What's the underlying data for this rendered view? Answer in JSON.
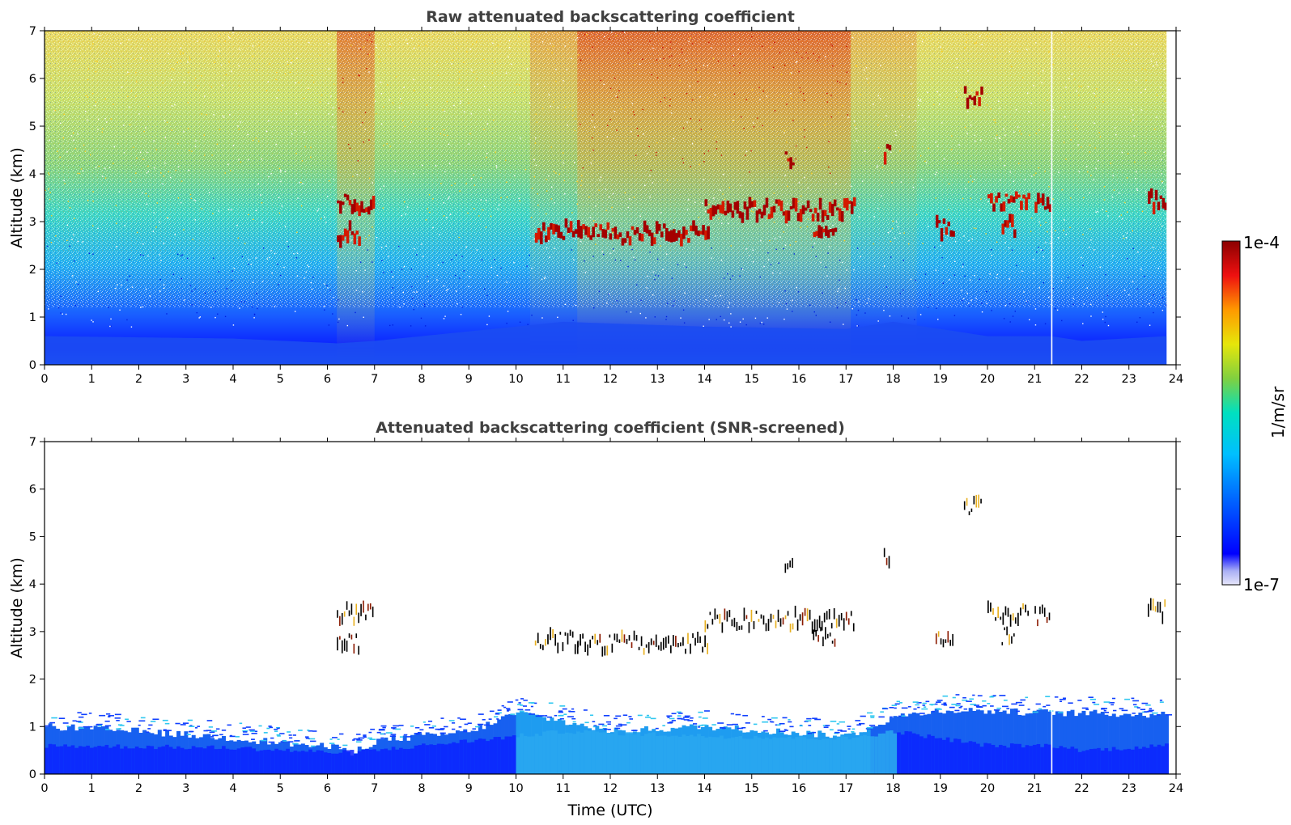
{
  "chart_data": [
    {
      "type": "heatmap",
      "title": "Raw attenuated backscattering coefficient",
      "xlabel": "",
      "ylabel": "Altitude (km)",
      "xlim": [
        0,
        24
      ],
      "ylim": [
        0,
        7
      ],
      "x_ticks": [
        "0",
        "1",
        "2",
        "3",
        "4",
        "5",
        "6",
        "7",
        "8",
        "9",
        "10",
        "11",
        "12",
        "13",
        "14",
        "15",
        "16",
        "17",
        "18",
        "19",
        "20",
        "21",
        "22",
        "23",
        "24"
      ],
      "y_ticks": [
        "0",
        "1",
        "2",
        "3",
        "4",
        "5",
        "6",
        "7"
      ],
      "data_end_hour": 23.8,
      "missing_profile_hour": 21.35,
      "background": "noisy signal increasing with altitude; daytime (11-17 UTC) noise reaches the top of the color scale",
      "boundary_layer_top_km": [
        {
          "x": 0,
          "y": 0.6
        },
        {
          "x": 4,
          "y": 0.55
        },
        {
          "x": 6.2,
          "y": 0.45
        },
        {
          "x": 7,
          "y": 0.5
        },
        {
          "x": 10,
          "y": 0.8
        },
        {
          "x": 11,
          "y": 0.9
        },
        {
          "x": 14,
          "y": 0.8
        },
        {
          "x": 17,
          "y": 0.75
        },
        {
          "x": 18,
          "y": 0.9
        },
        {
          "x": 20,
          "y": 0.6
        },
        {
          "x": 21.35,
          "y": 0.6
        },
        {
          "x": 22,
          "y": 0.5
        },
        {
          "x": 23.8,
          "y": 0.6
        }
      ],
      "cloud_layers": [
        {
          "start": 6.2,
          "end": 7.0,
          "altitude": 3.38
        },
        {
          "start": 6.2,
          "end": 6.7,
          "altitude": 2.75
        },
        {
          "start": 10.4,
          "end": 11.4,
          "altitude": 2.8
        },
        {
          "start": 11.3,
          "end": 14.1,
          "altitude": 2.75
        },
        {
          "start": 14.0,
          "end": 17.2,
          "altitude": 3.25
        },
        {
          "start": 16.3,
          "end": 16.8,
          "altitude": 2.9
        },
        {
          "start": 15.7,
          "end": 15.9,
          "altitude": 4.3
        },
        {
          "start": 17.8,
          "end": 17.95,
          "altitude": 4.5
        },
        {
          "start": 18.9,
          "end": 19.3,
          "altitude": 2.85
        },
        {
          "start": 19.5,
          "end": 19.9,
          "altitude": 5.6
        },
        {
          "start": 20.0,
          "end": 20.9,
          "altitude": 3.4
        },
        {
          "start": 20.3,
          "end": 20.6,
          "altitude": 2.9
        },
        {
          "start": 21.0,
          "end": 21.35,
          "altitude": 3.32
        },
        {
          "start": 23.4,
          "end": 23.8,
          "altitude": 3.45
        }
      ]
    },
    {
      "type": "heatmap",
      "title": "Attenuated backscattering coefficient (SNR-screened)",
      "xlabel": "Time (UTC)",
      "ylabel": "Altitude (km)",
      "xlim": [
        0,
        24
      ],
      "ylim": [
        0,
        7
      ],
      "x_ticks": [
        "0",
        "1",
        "2",
        "3",
        "4",
        "5",
        "6",
        "7",
        "8",
        "9",
        "10",
        "11",
        "12",
        "13",
        "14",
        "15",
        "16",
        "17",
        "18",
        "19",
        "20",
        "21",
        "22",
        "23",
        "24"
      ],
      "y_ticks": [
        "0",
        "1",
        "2",
        "3",
        "4",
        "5",
        "6",
        "7"
      ],
      "screened_signal_top_km": [
        {
          "x": 0,
          "y": 1.0
        },
        {
          "x": 2,
          "y": 0.9
        },
        {
          "x": 4,
          "y": 0.75
        },
        {
          "x": 6.2,
          "y": 0.55
        },
        {
          "x": 6.5,
          "y": 0.45
        },
        {
          "x": 7,
          "y": 0.7
        },
        {
          "x": 9,
          "y": 0.9
        },
        {
          "x": 10,
          "y": 1.3
        },
        {
          "x": 11,
          "y": 1.1
        },
        {
          "x": 12,
          "y": 0.9
        },
        {
          "x": 14,
          "y": 1.0
        },
        {
          "x": 17,
          "y": 0.8
        },
        {
          "x": 18,
          "y": 1.2
        },
        {
          "x": 19,
          "y": 1.35
        },
        {
          "x": 21,
          "y": 1.3
        },
        {
          "x": 23.8,
          "y": 1.25
        }
      ]
    }
  ],
  "colorbar": {
    "label": "1/m/sr",
    "max_label": "1e-4",
    "min_label": "1e-7",
    "scale": "log",
    "range": [
      1e-07,
      0.0001
    ],
    "colormap": [
      "#e6e6fa",
      "#0000ff",
      "#00aaff",
      "#00e5c8",
      "#7ecf3c",
      "#e8e40a",
      "#ff8c00",
      "#e00000",
      "#8b0000"
    ]
  }
}
